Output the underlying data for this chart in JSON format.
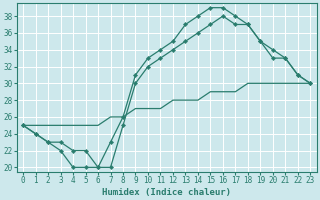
{
  "xlabel": "Humidex (Indice chaleur)",
  "xlim": [
    -0.5,
    23.5
  ],
  "ylim": [
    19.5,
    39.5
  ],
  "yticks": [
    20,
    22,
    24,
    26,
    28,
    30,
    32,
    34,
    36,
    38
  ],
  "xticks": [
    0,
    1,
    2,
    3,
    4,
    5,
    6,
    7,
    8,
    9,
    10,
    11,
    12,
    13,
    14,
    15,
    16,
    17,
    18,
    19,
    20,
    21,
    22,
    23
  ],
  "bg_color": "#cde8ec",
  "grid_color": "#ffffff",
  "line_color": "#2a7d6e",
  "lines": [
    {
      "x": [
        0,
        1,
        2,
        3,
        4,
        5,
        6,
        7,
        8,
        9,
        10,
        11,
        12,
        13,
        14,
        15,
        16,
        17,
        18,
        19,
        20,
        21,
        22,
        23
      ],
      "y": [
        25,
        24,
        23,
        22,
        20,
        20,
        20,
        23,
        26,
        31,
        33,
        34,
        35,
        37,
        38,
        39,
        39,
        38,
        37,
        35,
        33,
        33,
        31,
        30
      ],
      "has_markers": true
    },
    {
      "x": [
        0,
        1,
        2,
        3,
        4,
        5,
        6,
        7,
        8,
        9,
        10,
        11,
        12,
        13,
        14,
        15,
        16,
        17,
        18,
        19,
        20,
        21,
        22,
        23
      ],
      "y": [
        25,
        24,
        23,
        23,
        22,
        22,
        20,
        20,
        25,
        30,
        32,
        33,
        34,
        35,
        36,
        37,
        38,
        37,
        37,
        35,
        34,
        33,
        31,
        30
      ],
      "has_markers": true
    },
    {
      "x": [
        0,
        1,
        2,
        3,
        4,
        5,
        6,
        7,
        8,
        9,
        10,
        11,
        12,
        13,
        14,
        15,
        16,
        17,
        18,
        19,
        20,
        21,
        22,
        23
      ],
      "y": [
        25,
        25,
        25,
        25,
        25,
        25,
        25,
        26,
        26,
        27,
        27,
        27,
        28,
        28,
        28,
        29,
        29,
        29,
        30,
        30,
        30,
        30,
        30,
        30
      ],
      "has_markers": false
    }
  ],
  "marker": "D",
  "markersize": 2.2,
  "linewidth": 0.9,
  "tick_fontsize": 5.5,
  "xlabel_fontsize": 6.5
}
